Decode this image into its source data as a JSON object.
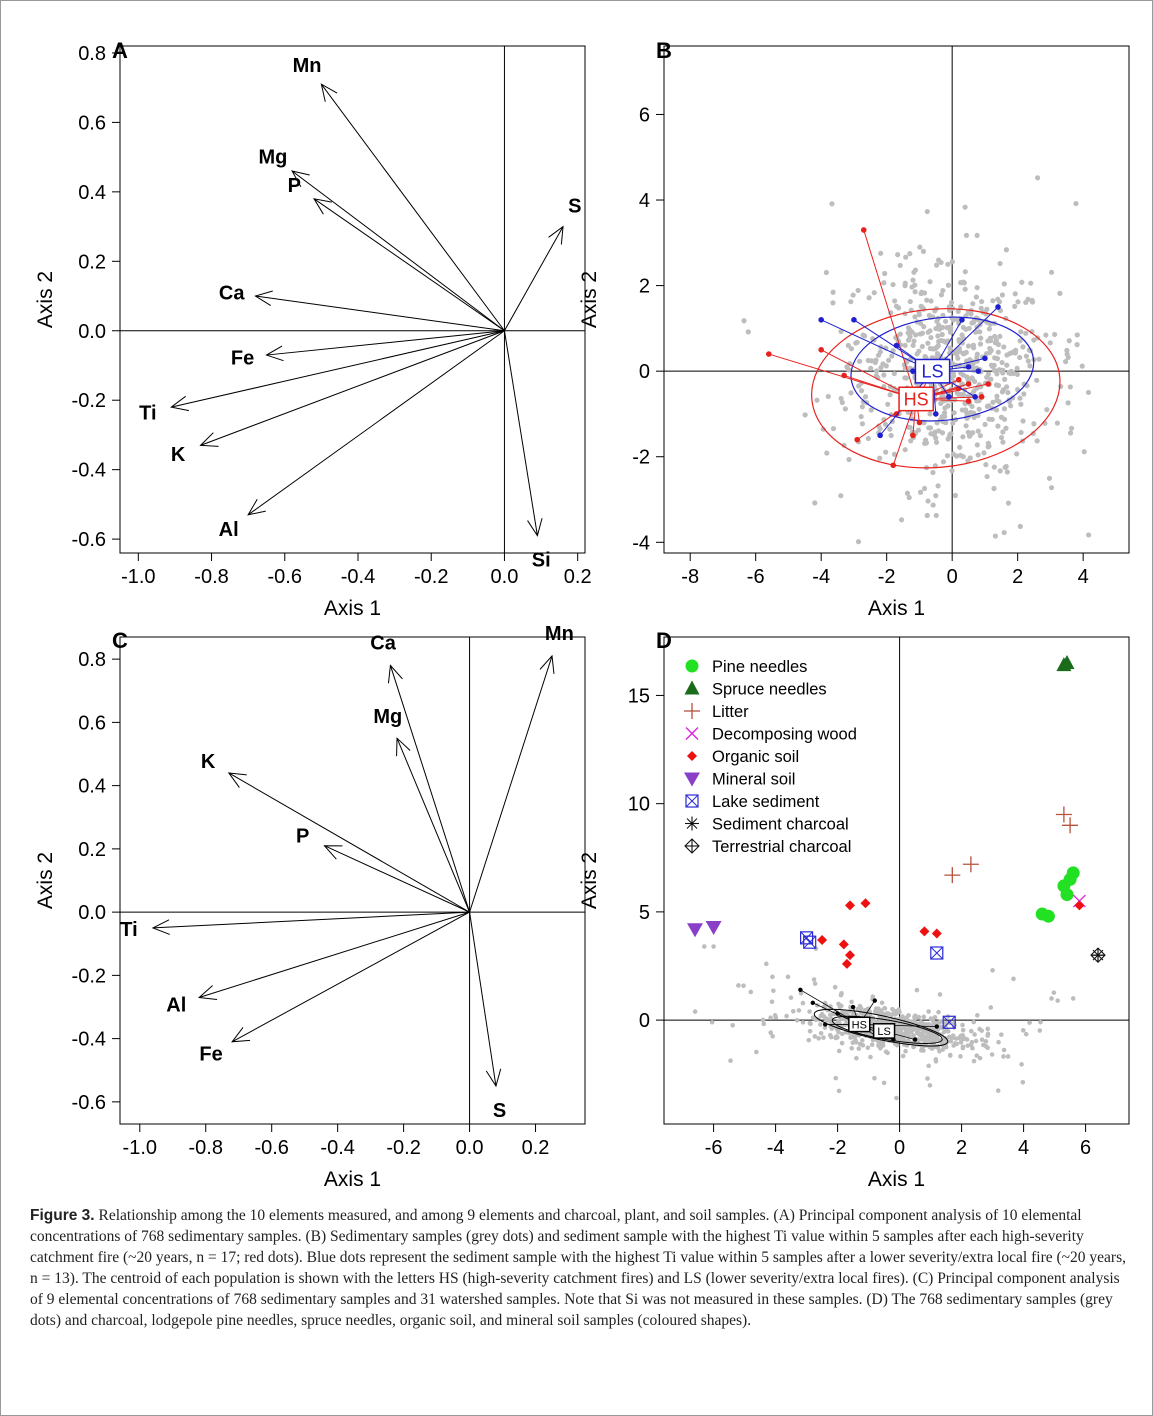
{
  "caption": {
    "label": "Figure 3.",
    "text": "Relationship among the 10 elements measured, and among 9 elements and charcoal, plant, and soil samples. (A) Principal component analysis of 10 elemental concentrations of 768 sedimentary samples. (B) Sedimentary samples (grey dots) and sediment sample with the highest Ti value within 5 samples after each high-severity catchment fire (~20 years, n = 17; red dots). Blue dots represent the sediment sample with the highest Ti value within 5 samples after a lower severity/extra local fire (~20 years, n = 13). The centroid of each population is shown with the letters HS (high-severity catchment fires) and LS (lower severity/extra local fires). (C) Principal component analysis of 9 elemental concentrations of 768 sedimentary samples and 31 watershed samples. Note that Si was not measured in these samples. (D) The 768 sedimentary samples (grey dots) and charcoal, lodgepole pine needles, spruce needles, organic soil, and mineral soil samples (coloured shapes)."
  },
  "colors": {
    "grey_points": "#bdbdbd",
    "hs": "#e8211d",
    "ls": "#1f1fd1",
    "pine": "#22e022",
    "spruce": "#1a6b1a",
    "litter": "#b5523b",
    "wood": "#e020e0",
    "organic": "#ee1111",
    "mineral": "#8a3fc9",
    "lake": "#2a2ad8",
    "charcoal": "#111111"
  },
  "chart_data": [
    {
      "panel": "A",
      "type": "biplot",
      "xlabel": "Axis 1",
      "ylabel": "Axis 2",
      "xlim": [
        -1.05,
        0.22
      ],
      "ylim": [
        -0.64,
        0.82
      ],
      "xticks": [
        "-1.0",
        "-0.8",
        "-0.6",
        "-0.4",
        "-0.2",
        "0.0",
        "0.2"
      ],
      "yticks": [
        "-0.6",
        "-0.4",
        "-0.2",
        "0.0",
        "0.2",
        "0.4",
        "0.6",
        "0.8"
      ],
      "vectors": [
        {
          "label": "Mn",
          "x": -0.5,
          "y": 0.71
        },
        {
          "label": "Mg",
          "x": -0.58,
          "y": 0.46
        },
        {
          "label": "P",
          "x": -0.52,
          "y": 0.38
        },
        {
          "label": "S",
          "x": 0.16,
          "y": 0.3
        },
        {
          "label": "Ca",
          "x": -0.68,
          "y": 0.1
        },
        {
          "label": "Fe",
          "x": -0.65,
          "y": -0.07
        },
        {
          "label": "Ti",
          "x": -0.91,
          "y": -0.22
        },
        {
          "label": "K",
          "x": -0.83,
          "y": -0.33
        },
        {
          "label": "Al",
          "x": -0.7,
          "y": -0.53
        },
        {
          "label": "Si",
          "x": 0.09,
          "y": -0.59
        }
      ]
    },
    {
      "panel": "B",
      "type": "scatter",
      "xlabel": "Axis 1",
      "ylabel": "Axis 2",
      "xlim": [
        -8.8,
        5.4
      ],
      "ylim": [
        -4.25,
        7.6
      ],
      "xticks": [
        "-8",
        "-6",
        "-4",
        "-2",
        "0",
        "2",
        "4"
      ],
      "yticks": [
        "-4",
        "-2",
        "0",
        "2",
        "4",
        "6"
      ],
      "grey_sample_count": 768,
      "centroids": [
        {
          "label": "HS",
          "x": -1.1,
          "y": -0.65
        },
        {
          "label": "LS",
          "x": -0.6,
          "y": 0.0
        }
      ],
      "hs_points": [
        [
          -2.7,
          3.3
        ],
        [
          -5.6,
          0.4
        ],
        [
          -4.0,
          0.5
        ],
        [
          -2.9,
          -1.6
        ],
        [
          -1.8,
          -2.2
        ],
        [
          -1.2,
          -1.5
        ],
        [
          -1.0,
          -1.2
        ],
        [
          -0.4,
          0.2
        ],
        [
          0.2,
          -0.4
        ],
        [
          0.5,
          -0.7
        ],
        [
          0.9,
          -0.6
        ],
        [
          -3.3,
          -0.1
        ],
        [
          -0.6,
          -0.5
        ],
        [
          0.2,
          -0.2
        ],
        [
          1.1,
          -0.3
        ],
        [
          0.5,
          -0.3
        ],
        [
          -1.7,
          -1.0
        ]
      ],
      "ls_points": [
        [
          -4.0,
          1.2
        ],
        [
          -3.0,
          1.2
        ],
        [
          -2.2,
          -1.5
        ],
        [
          -1.7,
          0.6
        ],
        [
          0.3,
          1.2
        ],
        [
          1.4,
          1.5
        ],
        [
          1.0,
          0.3
        ],
        [
          -0.1,
          -0.6
        ],
        [
          0.5,
          0.1
        ],
        [
          -1.2,
          0.0
        ],
        [
          0.7,
          -0.6
        ],
        [
          -0.5,
          -1.0
        ],
        [
          0.8,
          0.0
        ]
      ]
    },
    {
      "panel": "C",
      "type": "biplot",
      "xlabel": "Axis 1",
      "ylabel": "Axis 2",
      "xlim": [
        -1.06,
        0.35
      ],
      "ylim": [
        -0.67,
        0.87
      ],
      "xticks": [
        "-1.0",
        "-0.8",
        "-0.6",
        "-0.4",
        "-0.2",
        "0.0",
        "0.2"
      ],
      "yticks": [
        "-0.6",
        "-0.4",
        "-0.2",
        "0.0",
        "0.2",
        "0.4",
        "0.6",
        "0.8"
      ],
      "vectors": [
        {
          "label": "Ca",
          "x": -0.24,
          "y": 0.78
        },
        {
          "label": "Mn",
          "x": 0.25,
          "y": 0.81
        },
        {
          "label": "Mg",
          "x": -0.22,
          "y": 0.55
        },
        {
          "label": "K",
          "x": -0.73,
          "y": 0.44
        },
        {
          "label": "P",
          "x": -0.44,
          "y": 0.21
        },
        {
          "label": "Ti",
          "x": -0.96,
          "y": -0.05
        },
        {
          "label": "Al",
          "x": -0.82,
          "y": -0.27
        },
        {
          "label": "Fe",
          "x": -0.72,
          "y": -0.41
        },
        {
          "label": "S",
          "x": 0.08,
          "y": -0.55
        }
      ]
    },
    {
      "panel": "D",
      "type": "scatter",
      "xlabel": "Axis 1",
      "ylabel": "Axis 2",
      "xlim": [
        -7.6,
        7.4
      ],
      "ylim": [
        -4.8,
        17.7
      ],
      "xticks": [
        "-6",
        "-4",
        "-2",
        "0",
        "2",
        "4",
        "6"
      ],
      "yticks": [
        "0",
        "5",
        "10",
        "15"
      ],
      "grey_sample_count": 768,
      "legend_position": "top-left",
      "series": [
        {
          "name": "Pine needles",
          "marker": "circle",
          "points": [
            [
              4.6,
              4.9
            ],
            [
              4.8,
              4.8
            ],
            [
              5.3,
              6.2
            ],
            [
              5.4,
              5.8
            ],
            [
              5.5,
              6.5
            ],
            [
              5.6,
              6.8
            ]
          ]
        },
        {
          "name": "Spruce needles",
          "marker": "triangle",
          "points": [
            [
              5.3,
              16.4
            ],
            [
              5.4,
              16.5
            ]
          ]
        },
        {
          "name": "Litter",
          "marker": "plus",
          "points": [
            [
              1.7,
              6.7
            ],
            [
              2.3,
              7.2
            ],
            [
              5.3,
              9.5
            ],
            [
              5.5,
              9.0
            ]
          ]
        },
        {
          "name": "Decomposing wood",
          "marker": "cross",
          "points": [
            [
              5.8,
              5.5
            ]
          ]
        },
        {
          "name": "Organic soil",
          "marker": "diamond",
          "points": [
            [
              -1.6,
              5.3
            ],
            [
              -1.1,
              5.4
            ],
            [
              -2.5,
              3.7
            ],
            [
              -1.8,
              3.5
            ],
            [
              -1.6,
              3.0
            ],
            [
              -1.7,
              2.6
            ],
            [
              0.8,
              4.1
            ],
            [
              1.2,
              4.0
            ],
            [
              5.8,
              5.3
            ]
          ]
        },
        {
          "name": "Mineral soil",
          "marker": "triangle-down",
          "points": [
            [
              -6.6,
              4.2
            ],
            [
              -6.0,
              4.3
            ]
          ]
        },
        {
          "name": "Lake sediment",
          "marker": "boxed-x",
          "points": [
            [
              -3.0,
              3.8
            ],
            [
              -2.9,
              3.6
            ],
            [
              1.2,
              3.1
            ],
            [
              1.6,
              -0.1
            ]
          ]
        },
        {
          "name": "Sediment charcoal",
          "marker": "asterisk",
          "points": [
            [
              6.4,
              3.0
            ]
          ]
        },
        {
          "name": "Terrestrial charcoal",
          "marker": "diamond-plus",
          "points": [
            [
              6.4,
              3.0
            ]
          ]
        }
      ],
      "centroids": [
        {
          "label": "HS",
          "x": -1.3,
          "y": -0.2
        },
        {
          "label": "LS",
          "x": -0.5,
          "y": -0.5
        }
      ]
    }
  ]
}
